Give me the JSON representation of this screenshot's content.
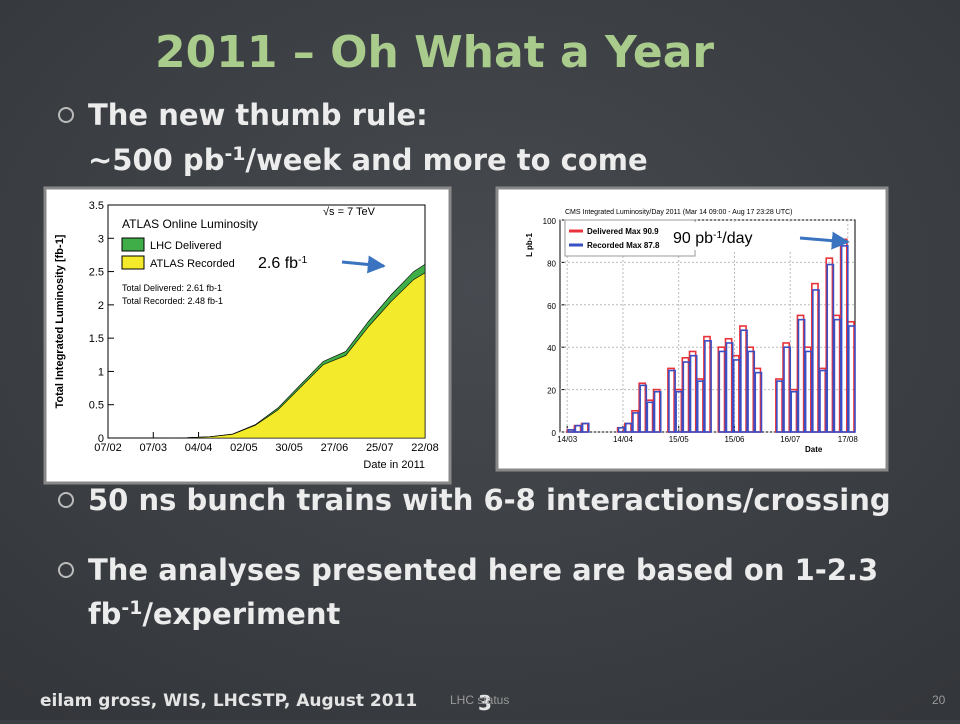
{
  "slide": {
    "title": "2011 – Oh What a Year",
    "bullets": [
      {
        "lines": [
          [
            {
              "text": "The new thumb rule:"
            }
          ],
          [
            {
              "text": "~500 pb"
            },
            {
              "sup": "-1"
            },
            {
              "text": "/week and more to come"
            }
          ]
        ]
      },
      {
        "lines": [
          [
            {
              "text": "50 ns bunch trains with 6-8 interactions/crossing"
            }
          ]
        ]
      },
      {
        "lines": [
          [
            {
              "text": "The analyses presented here are based on 1-2.3"
            }
          ],
          [
            {
              "text": "fb"
            },
            {
              "sup": "-1"
            },
            {
              "text": "/experiment"
            }
          ]
        ]
      }
    ],
    "annotations": [
      [
        {
          "text": "2.6 fb"
        },
        {
          "sup": "-1"
        }
      ],
      [
        {
          "text": "90 pb"
        },
        {
          "sup": "-1"
        },
        {
          "text": "/day"
        }
      ]
    ],
    "footer": {
      "author": "eilam gross, WIS, LHCSTP, August 2011",
      "slide_number": "3",
      "section": "LHC status",
      "page": "20"
    }
  },
  "chart_data": [
    {
      "type": "area",
      "title": "ATLAS Online Luminosity",
      "subtitle": "√s = 7 TeV",
      "y_label": "Total Integrated Luminosity [fb-1]",
      "x_label": "Date in 2011",
      "notes": [
        "Total Delivered: 2.61 fb-1",
        "Total Recorded: 2.48 fb-1"
      ],
      "x": [
        "07/02",
        "14/03",
        "28/03",
        "11/04",
        "25/04",
        "09/05",
        "23/05",
        "06/06",
        "20/06",
        "04/07",
        "18/07",
        "01/08",
        "15/08",
        "22/08"
      ],
      "series": [
        {
          "name": "LHC Delivered",
          "color": "#3fae49",
          "values": [
            0,
            0,
            0.005,
            0.02,
            0.06,
            0.2,
            0.45,
            0.8,
            1.15,
            1.3,
            1.75,
            2.15,
            2.5,
            2.61
          ]
        },
        {
          "name": "ATLAS Recorded",
          "color": "#f2ea2a",
          "values": [
            0,
            0,
            0.004,
            0.018,
            0.055,
            0.19,
            0.42,
            0.76,
            1.1,
            1.24,
            1.67,
            2.05,
            2.38,
            2.48
          ]
        }
      ],
      "xlim": [
        "07/02",
        "22/08"
      ],
      "xticks": [
        "07/02",
        "07/03",
        "04/04",
        "02/05",
        "30/05",
        "27/06",
        "25/07",
        "22/08"
      ],
      "ylim": [
        0,
        3.5
      ],
      "yticks": [
        0,
        0.5,
        1,
        1.5,
        2,
        2.5,
        3,
        3.5
      ]
    },
    {
      "type": "bar",
      "title": "CMS Integrated Luminosity/Day 2011 (Mar 14 09:00 - Aug 17 23:28 UTC)",
      "y_label": "L pb-1",
      "x_label": "Date",
      "x": [
        "14/03",
        "18/03",
        "22/03",
        "26/03",
        "30/03",
        "03/04",
        "07/04",
        "11/04",
        "15/04",
        "19/04",
        "23/04",
        "27/04",
        "01/05",
        "05/05",
        "09/05",
        "13/05",
        "17/05",
        "21/05",
        "25/05",
        "29/05",
        "02/06",
        "06/06",
        "10/06",
        "14/06",
        "18/06",
        "22/06",
        "26/06",
        "30/06",
        "04/07",
        "08/07",
        "12/07",
        "16/07",
        "20/07",
        "24/07",
        "28/07",
        "01/08",
        "05/08",
        "09/08",
        "13/08",
        "17/08"
      ],
      "series": [
        {
          "name": "Delivered Max 90.9",
          "color": "#e8333a",
          "values": [
            1,
            3,
            4,
            0,
            0,
            0,
            0,
            2,
            4,
            10,
            23,
            15,
            20,
            0,
            30,
            20,
            35,
            38,
            25,
            45,
            0,
            40,
            44,
            36,
            50,
            40,
            30,
            0,
            0,
            25,
            42,
            20,
            55,
            40,
            70,
            30,
            82,
            55,
            90.9,
            52
          ]
        },
        {
          "name": "Recorded Max 87.8",
          "color": "#3b4fc4",
          "values": [
            1,
            3,
            4,
            0,
            0,
            0,
            0,
            2,
            4,
            9,
            22,
            14,
            19,
            0,
            29,
            19,
            33,
            36,
            24,
            43,
            0,
            38,
            42,
            34,
            48,
            38,
            28,
            0,
            0,
            24,
            40,
            19,
            53,
            38,
            67,
            29,
            79,
            53,
            87.8,
            50
          ]
        }
      ],
      "xlim": [
        "10/03",
        "21/08"
      ],
      "xticks": [
        "14/03",
        "14/04",
        "15/05",
        "15/06",
        "16/07",
        "17/08"
      ],
      "ylim": [
        0,
        100
      ],
      "yticks": [
        0,
        20,
        40,
        60,
        80,
        100
      ]
    }
  ]
}
